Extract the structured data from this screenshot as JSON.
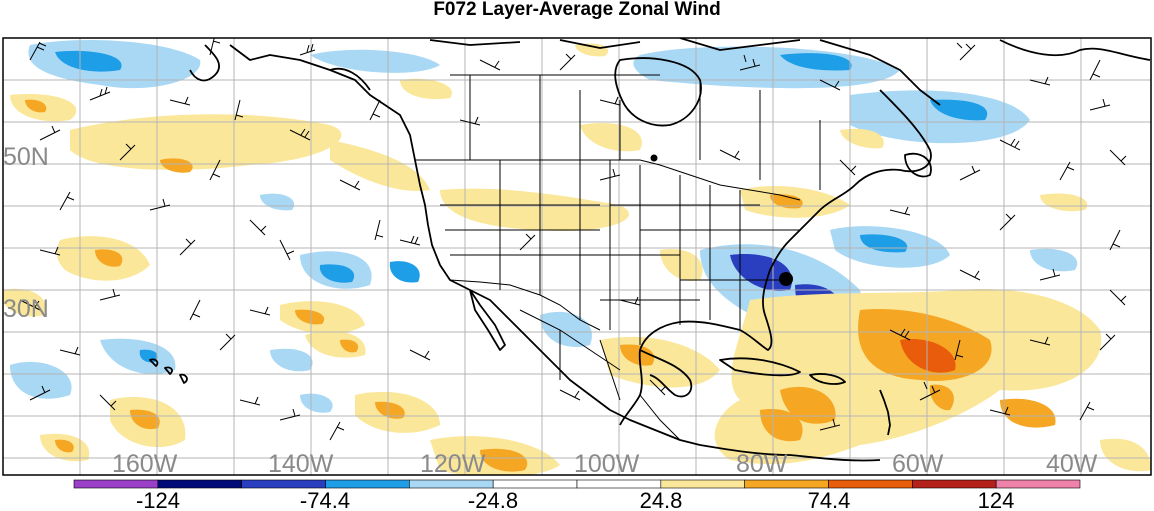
{
  "title": "F072 Layer-Average Zonal Wind",
  "map": {
    "longitude_labels": [
      "160W",
      "140W",
      "120W",
      "100W",
      "80W",
      "60W",
      "40W"
    ],
    "latitude_labels": [
      "50N",
      "30N"
    ]
  },
  "colorbar": {
    "tick_labels": [
      "-124",
      "-74.4",
      "-24.8",
      "24.8",
      "74.4",
      "124"
    ],
    "colors": [
      "#9b3fc9",
      "#000a78",
      "#2a3fbf",
      "#1f9ee8",
      "#a9d8f5",
      "#ffffff",
      "#ffffff",
      "#fbe79a",
      "#f5a623",
      "#e85c0c",
      "#b3211a",
      "#ef82a8"
    ]
  },
  "colors": {
    "neg_light": "#a9d8f5",
    "neg_mid": "#1f9ee8",
    "neg_dark": "#2a3fbf",
    "pos_light": "#fbe79a",
    "pos_mid": "#f5a623",
    "pos_dark": "#e85c0c"
  }
}
